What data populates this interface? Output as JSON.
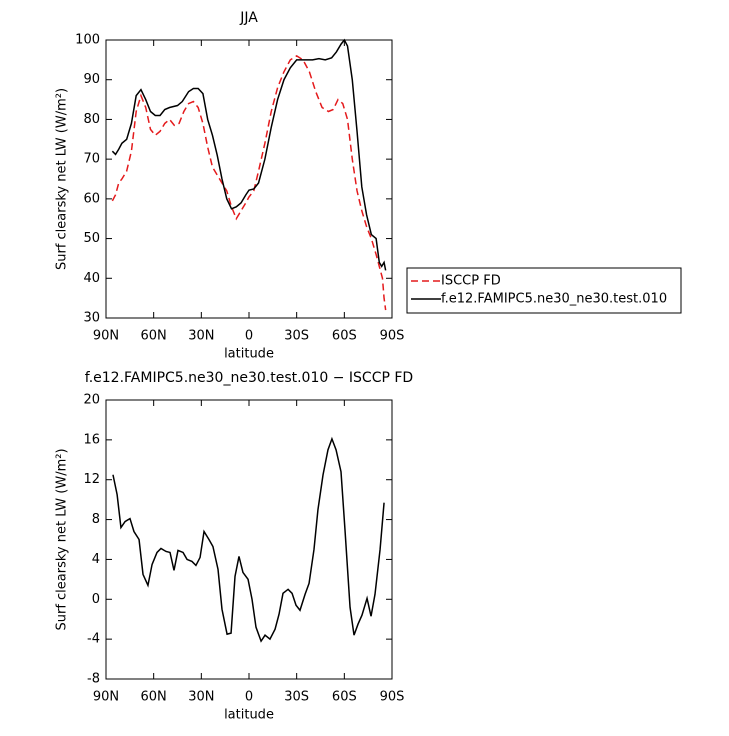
{
  "chart_data": [
    {
      "type": "line",
      "title": "JJA",
      "xlabel": "latitude",
      "ylabel": "Surf clearsky net LW (W/m²)",
      "xlim": [
        90,
        -90
      ],
      "xticks": [
        {
          "value": 90,
          "label": "90N"
        },
        {
          "value": 60,
          "label": "60N"
        },
        {
          "value": 30,
          "label": "30N"
        },
        0,
        {
          "value": -30,
          "label": "30S"
        },
        {
          "value": -60,
          "label": "60S"
        },
        {
          "value": -90,
          "label": "90S"
        }
      ],
      "ylim": [
        30,
        100
      ],
      "yticks": [
        30,
        40,
        50,
        60,
        70,
        80,
        90,
        100
      ],
      "legend": "outside-right",
      "series": [
        {
          "name": "ISCCP FD",
          "color": "#e41a1c",
          "dash": true,
          "x": [
            86,
            84,
            82,
            80,
            77,
            74,
            71,
            68,
            65,
            62,
            59,
            56,
            53,
            50,
            47,
            44,
            41,
            38,
            35,
            32,
            29,
            26,
            23,
            20,
            17,
            14,
            11,
            8,
            5,
            2,
            0,
            -3,
            -6,
            -10,
            -14,
            -18,
            -22,
            -26,
            -30,
            -34,
            -38,
            -42,
            -46,
            -50,
            -53,
            -56,
            -59,
            -62,
            -65,
            -68,
            -71,
            -74,
            -77,
            -80,
            -82,
            -84,
            -85,
            -86
          ],
          "values": [
            59.5,
            61,
            64,
            65,
            67,
            72,
            82,
            86,
            83,
            77.5,
            76,
            77,
            79,
            80,
            78.5,
            79,
            82,
            84,
            84.5,
            83,
            79,
            73,
            68,
            66,
            64,
            62,
            58,
            55,
            57,
            59,
            60.5,
            62,
            67,
            74,
            82,
            88,
            92,
            95,
            96,
            95,
            92,
            87,
            83,
            82,
            82.5,
            85,
            84,
            80,
            70,
            62,
            57,
            53,
            50,
            46,
            43,
            40,
            35,
            32
          ]
        },
        {
          "name": "f.e12.FAMIPC5.ne30_ne30.test.010",
          "color": "#000000",
          "dash": false,
          "x": [
            86,
            84,
            82,
            80,
            77,
            74,
            71,
            68,
            65,
            62,
            59,
            56,
            53,
            50,
            45,
            42,
            38,
            35,
            32,
            29,
            26,
            23,
            20,
            17,
            14,
            11,
            8,
            5,
            2,
            0,
            -3,
            -6,
            -10,
            -14,
            -18,
            -22,
            -26,
            -30,
            -35,
            -40,
            -44,
            -48,
            -52,
            -55,
            -58,
            -60,
            -62,
            -65,
            -68,
            -71,
            -74,
            -77,
            -80,
            -82,
            -83.5,
            -85,
            -86
          ],
          "values": [
            72,
            71.2,
            72.5,
            74,
            75,
            79,
            86,
            87.5,
            85,
            82,
            81,
            81,
            82.5,
            83,
            83.5,
            84.5,
            87,
            87.8,
            87.8,
            86.5,
            80,
            76,
            71,
            65,
            60,
            57.5,
            58,
            59,
            61,
            62.2,
            62.5,
            64,
            70,
            78,
            85,
            90,
            93,
            95,
            95,
            95,
            95.3,
            95,
            95.5,
            97,
            99,
            100,
            98.5,
            90,
            77,
            63,
            56,
            51,
            50,
            44,
            43,
            44,
            42
          ]
        }
      ]
    },
    {
      "type": "line",
      "title": "f.e12.FAMIPC5.ne30_ne30.test.010 − ISCCP FD",
      "xlabel": "latitude",
      "ylabel": "Surf clearsky net LW (W/m²)",
      "xlim": [
        90,
        -90
      ],
      "xticks": [
        {
          "value": 90,
          "label": "90N"
        },
        {
          "value": 60,
          "label": "60N"
        },
        {
          "value": 30,
          "label": "30N"
        },
        0,
        {
          "value": -30,
          "label": "30S"
        },
        {
          "value": -60,
          "label": "60S"
        },
        {
          "value": -90,
          "label": "90S"
        }
      ],
      "ylim": [
        -8,
        20
      ],
      "yticks": [
        -8,
        -4,
        0,
        4,
        8,
        12,
        16,
        20
      ],
      "series": [
        {
          "color": "#000000",
          "dash": false,
          "x": [
            85.6,
            83,
            80.6,
            78,
            74.9,
            72.4,
            69.2,
            66.7,
            63.6,
            61,
            57.9,
            55.4,
            52.2,
            49.7,
            47.2,
            44.7,
            41.5,
            39,
            35.9,
            33.4,
            30.8,
            28.3,
            25.2,
            22.7,
            19.5,
            17,
            13.8,
            11.3,
            8.8,
            6.3,
            3.8,
            0.6,
            -1.9,
            -4.4,
            -7.6,
            -10.1,
            -13.2,
            -16.4,
            -18.9,
            -21.4,
            -24.6,
            -27.1,
            -29.6,
            -32.1,
            -35.3,
            -37.8,
            -40.9,
            -43.4,
            -46.6,
            -49.7,
            -52.2,
            -54.8,
            -57.9,
            -60.4,
            -63.6,
            -66.1,
            -68.6,
            -71.1,
            -74.3,
            -76.8,
            -79.3,
            -82.5,
            -85
          ],
          "values": [
            12.5,
            10.5,
            7.2,
            7.8,
            8.1,
            6.8,
            6,
            2.5,
            1.4,
            3.5,
            4.7,
            5.1,
            4.8,
            4.7,
            2.9,
            4.9,
            4.7,
            4,
            3.8,
            3.4,
            4.2,
            6.8,
            6,
            5.3,
            3,
            -1,
            -3.5,
            -3.4,
            2.3,
            4.3,
            2.7,
            2,
            0,
            -2.8,
            -4.2,
            -3.6,
            -4,
            -3,
            -1.5,
            0.6,
            1,
            0.6,
            -0.6,
            -1.1,
            0.5,
            1.6,
            5,
            9,
            12.5,
            15,
            16.1,
            15,
            12.8,
            7,
            -0.8,
            -3.6,
            -2.5,
            -1.6,
            0.1,
            -1.7,
            0.5,
            5,
            9.7
          ]
        }
      ]
    }
  ]
}
